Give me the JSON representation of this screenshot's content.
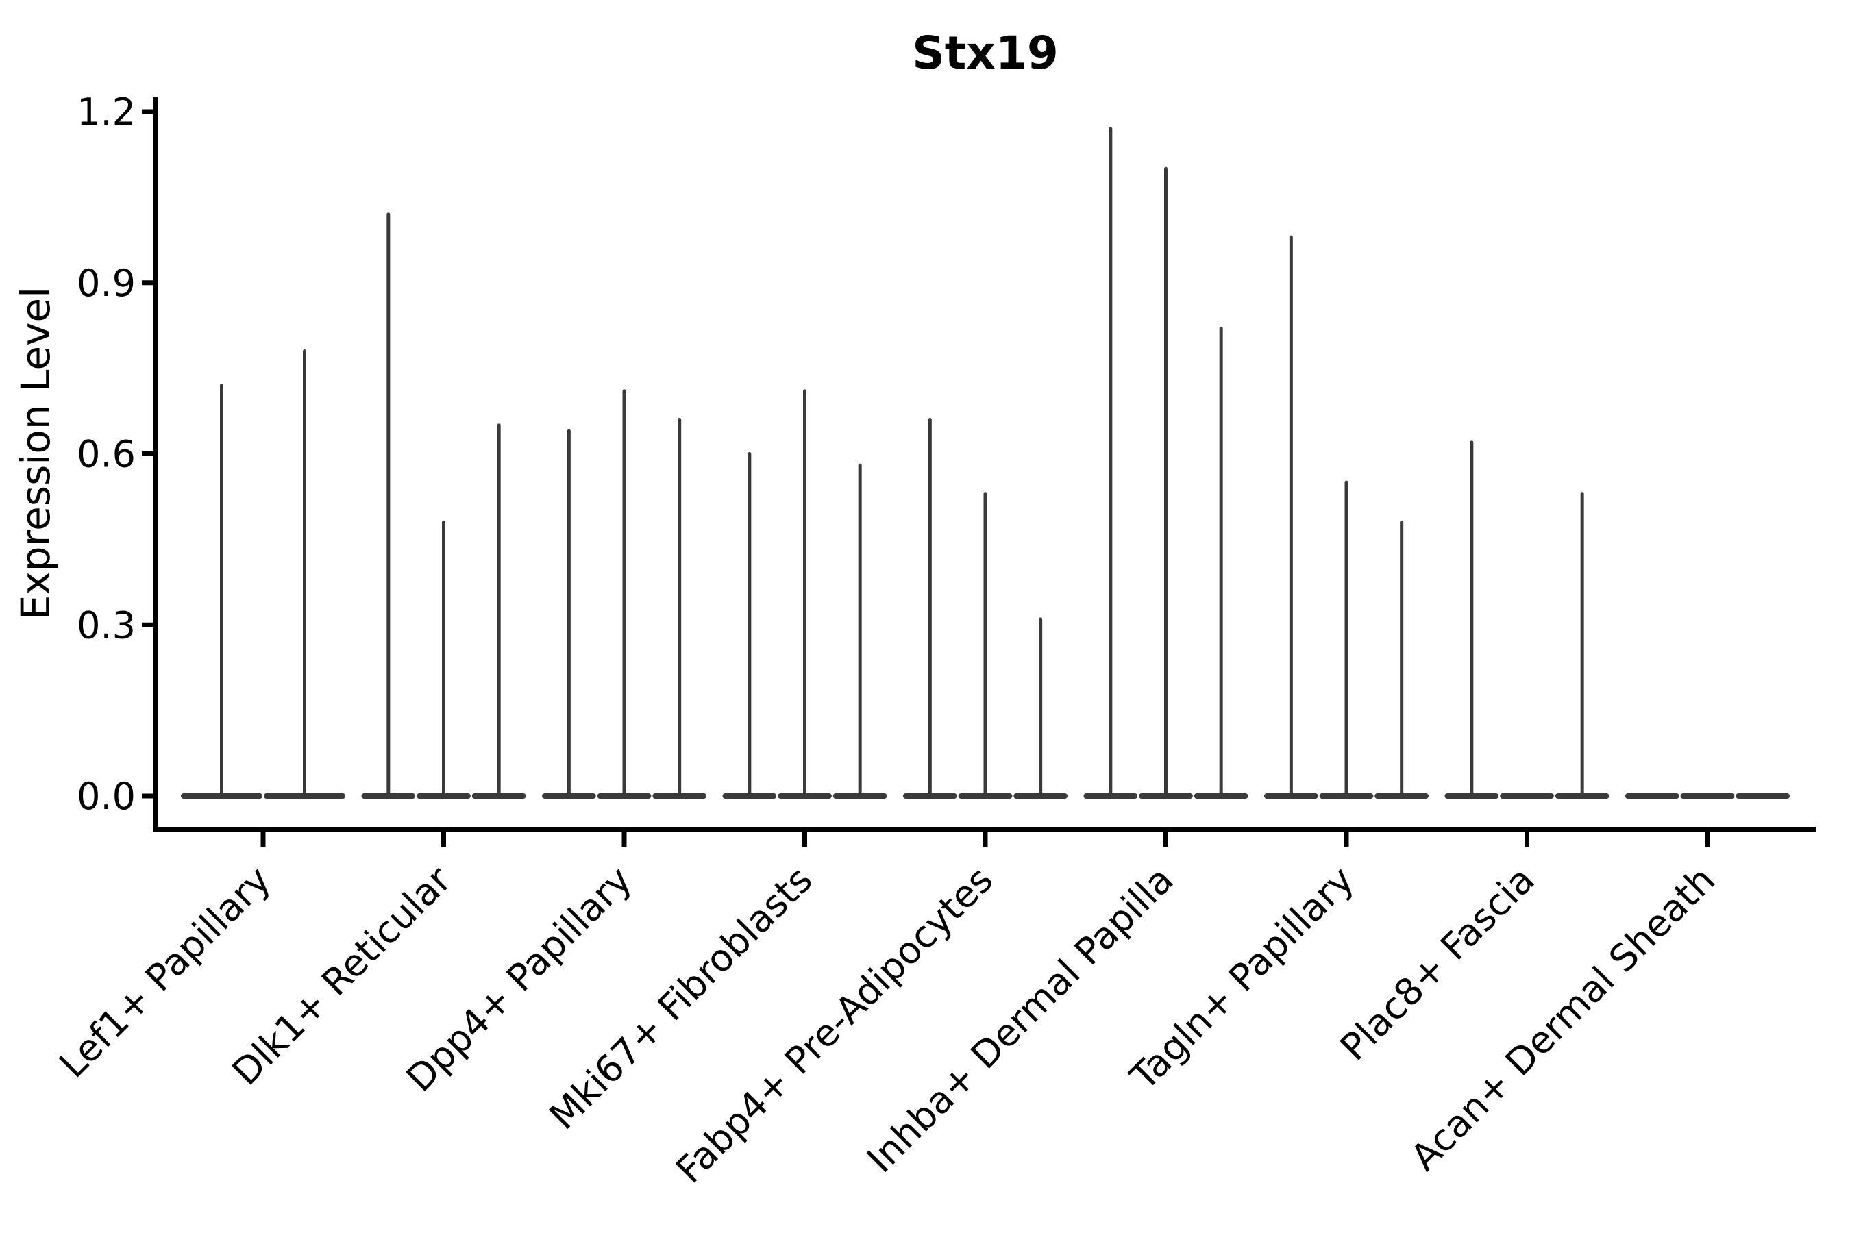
{
  "chart_data": {
    "type": "violin",
    "title": "Stx19",
    "xlabel": "",
    "ylabel": "Expression Level",
    "ylim": [
      0,
      1.2
    ],
    "yticks": [
      0.0,
      0.3,
      0.6,
      0.9,
      1.2
    ],
    "ytick_labels": [
      "0.0",
      "0.3",
      "0.6",
      "0.9",
      "1.2"
    ],
    "grid": "off",
    "legend": "none",
    "categories": [
      "Lef1+ Papillary",
      "Dlk1+ Reticular",
      "Dpp4+ Papillary",
      "Mki67+ Fibroblasts",
      "Fabp4+ Pre-Adipocytes",
      "Inhba+ Dermal Papilla",
      "Tagln+ Papillary",
      "Plac8+ Fascia",
      "Acan+ Dermal Sheath"
    ],
    "groups": [
      {
        "label": "Lef1+ Papillary",
        "violins": [
          0.72,
          0.78
        ]
      },
      {
        "label": "Dlk1+ Reticular",
        "violins": [
          1.02,
          0.48,
          0.65
        ]
      },
      {
        "label": "Dpp4+ Papillary",
        "violins": [
          0.64,
          0.71,
          0.66
        ]
      },
      {
        "label": "Mki67+ Fibroblasts",
        "violins": [
          0.6,
          0.71,
          0.58
        ]
      },
      {
        "label": "Fabp4+ Pre-Adipocytes",
        "violins": [
          0.66,
          0.53,
          0.31
        ]
      },
      {
        "label": "Inhba+ Dermal Papilla",
        "violins": [
          1.17,
          1.1,
          0.82
        ]
      },
      {
        "label": "Tagln+ Papillary",
        "violins": [
          0.98,
          0.55,
          0.48
        ]
      },
      {
        "label": "Plac8+ Fascia",
        "violins": [
          0.62,
          0,
          0.53
        ]
      },
      {
        "label": "Acan+ Dermal Sheath",
        "violins": [
          0,
          0,
          0
        ]
      }
    ],
    "style": {
      "violin_color": "#3a3a3a",
      "axis_color": "#000000",
      "text_color": "#000000",
      "background": "#ffffff"
    }
  }
}
